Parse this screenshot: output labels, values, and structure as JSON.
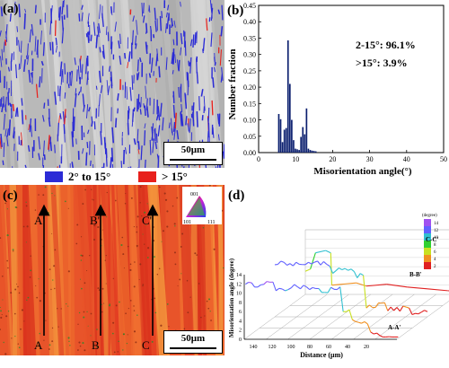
{
  "panel_a": {
    "label": "(a)",
    "scale_bar": "50μm",
    "legend": [
      {
        "label": "2° to 15°",
        "color": "#2b2bd6"
      },
      {
        "label": "> 15°",
        "color": "#e8201c"
      }
    ]
  },
  "panel_b": {
    "label": "(b)",
    "annotation_1": "2-15°:  96.1%",
    "annotation_2": ">15°:  3.9%"
  },
  "panel_c": {
    "label": "(c)",
    "scale_bar": "50μm",
    "ipf_labels": {
      "top": "001",
      "left": "101",
      "right": "111"
    },
    "lines": [
      {
        "start": "A",
        "end": "A'"
      },
      {
        "start": "B",
        "end": "B'"
      },
      {
        "start": "C",
        "end": "C'"
      }
    ]
  },
  "panel_d": {
    "label": "(d)",
    "zlabel": "Misorientation angle (degree)",
    "xlabel": "Distance (μm)",
    "z_ticks": [
      "0",
      "2",
      "4",
      "6",
      "8",
      "10",
      "12",
      "14"
    ],
    "x_ticks": [
      "140",
      "120",
      "100",
      "80",
      "60",
      "40",
      "20"
    ],
    "colorbar_title": "(degree)",
    "colorbar_ticks": [
      "14",
      "12",
      "10",
      "8",
      "6",
      "4",
      "2"
    ],
    "line_labels": [
      "C-C'",
      "B-B'",
      "A-A'"
    ]
  },
  "chart_data": [
    {
      "type": "bar",
      "title": "",
      "xlabel": "Misorientation angle(°)",
      "ylabel": "Number fraction",
      "xlim": [
        0,
        50
      ],
      "ylim": [
        0,
        0.45
      ],
      "x_ticks": [
        0,
        10,
        20,
        30,
        40,
        50
      ],
      "y_ticks": [
        0.0,
        0.05,
        0.1,
        0.15,
        0.2,
        0.25,
        0.3,
        0.35,
        0.4,
        0.45
      ],
      "bin_width": 0.5,
      "x": [
        5.5,
        6.0,
        6.5,
        7.0,
        7.5,
        8.0,
        8.5,
        9.0,
        9.5,
        10.0,
        10.5,
        11.0,
        11.5,
        12.0,
        12.5,
        13.0,
        13.5,
        14.0,
        14.5,
        15.0,
        15.5
      ],
      "values": [
        0.118,
        0.102,
        0.032,
        0.07,
        0.075,
        0.343,
        0.21,
        0.1,
        0.038,
        0.012,
        0.01,
        0.008,
        0.048,
        0.078,
        0.056,
        0.135,
        0.012,
        0.008,
        0.006,
        0.005,
        0.004
      ],
      "grid": false
    }
  ]
}
